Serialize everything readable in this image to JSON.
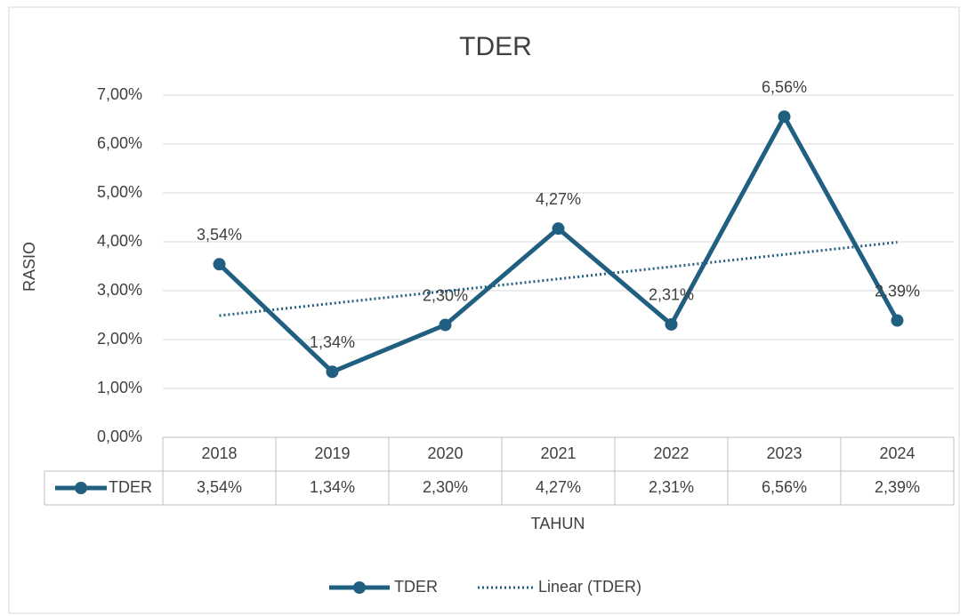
{
  "chart_data": {
    "type": "line",
    "title": "TDER",
    "xlabel": "TAHUN",
    "ylabel": "RASIO",
    "categories": [
      "2018",
      "2019",
      "2020",
      "2021",
      "2022",
      "2023",
      "2024"
    ],
    "series": [
      {
        "name": "TDER",
        "color": "#215f80",
        "values": [
          3.54,
          1.34,
          2.3,
          4.27,
          2.31,
          6.56,
          2.39
        ],
        "value_labels": [
          "3,54%",
          "1,34%",
          "2,30%",
          "4,27%",
          "2,31%",
          "6,56%",
          "2,39%"
        ]
      },
      {
        "name": "Linear (TDER)",
        "color": "#215f80",
        "style": "dotted",
        "values": [
          2.49,
          2.74,
          2.99,
          3.24,
          3.49,
          3.74,
          3.99
        ]
      }
    ],
    "ylim": [
      0,
      7
    ],
    "yticks": [
      {
        "value": 0,
        "label": "0,00%"
      },
      {
        "value": 1,
        "label": "1,00%"
      },
      {
        "value": 2,
        "label": "2,00%"
      },
      {
        "value": 3,
        "label": "3,00%"
      },
      {
        "value": 4,
        "label": "4,00%"
      },
      {
        "value": 5,
        "label": "5,00%"
      },
      {
        "value": 6,
        "label": "6,00%"
      },
      {
        "value": 7,
        "label": "7,00%"
      }
    ],
    "grid": true,
    "data_table": true,
    "legend": "bottom"
  }
}
